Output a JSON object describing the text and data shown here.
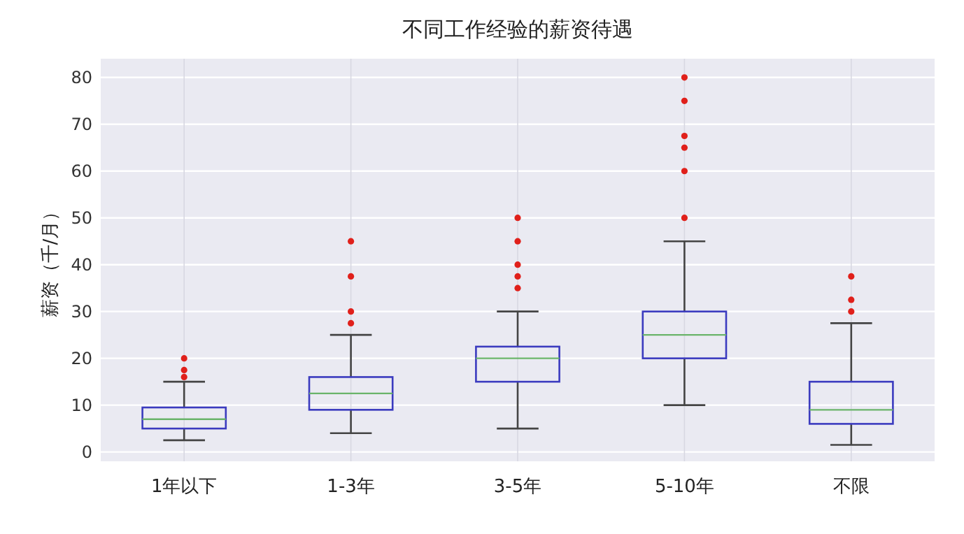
{
  "chart_data": {
    "type": "box",
    "title": "不同工作经验的薪资待遇",
    "ylabel": "薪资（千/月）",
    "categories": [
      "1年以下",
      "1-3年",
      "3-5年",
      "5-10年",
      "不限"
    ],
    "boxes": [
      {
        "low": 2.5,
        "q1": 5,
        "median": 7,
        "q3": 9.5,
        "high": 15,
        "outliers": [
          16,
          17.5,
          20
        ]
      },
      {
        "low": 4,
        "q1": 9,
        "median": 12.5,
        "q3": 16,
        "high": 25,
        "outliers": [
          27.5,
          30,
          37.5,
          45
        ]
      },
      {
        "low": 5,
        "q1": 15,
        "median": 20,
        "q3": 22.5,
        "high": 30,
        "outliers": [
          35,
          37.5,
          40,
          45,
          50
        ]
      },
      {
        "low": 10,
        "q1": 20,
        "median": 25,
        "q3": 30,
        "high": 45,
        "outliers": [
          50,
          60,
          65,
          67.5,
          75,
          80
        ]
      },
      {
        "low": 1.5,
        "q1": 6,
        "median": 9,
        "q3": 15,
        "high": 27.5,
        "outliers": [
          30,
          32.5,
          37.5
        ]
      }
    ],
    "color": "#3b3bbf",
    "ylim": [
      -2,
      84
    ],
    "yticks": [
      0,
      10,
      20,
      30,
      40,
      50,
      60,
      70,
      80
    ],
    "grid": true,
    "marker": "circle"
  }
}
